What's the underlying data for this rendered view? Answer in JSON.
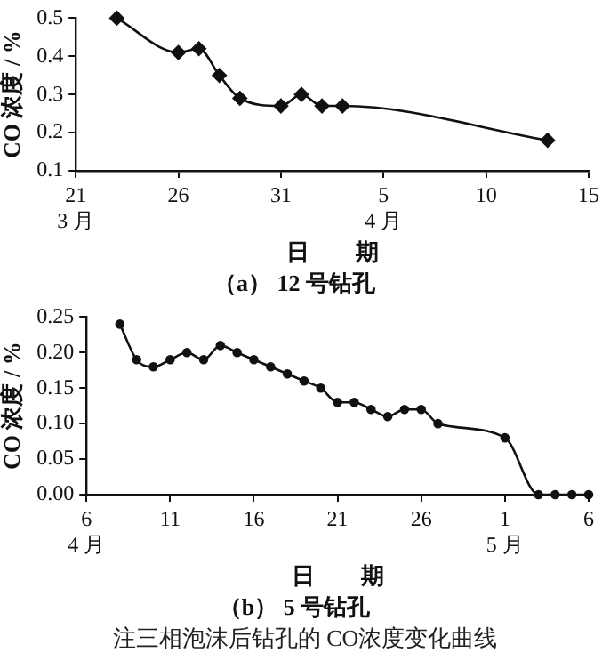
{
  "chart_data": [
    {
      "type": "line",
      "title": "（a） 12 号钻孔",
      "xlabel": "日　　期",
      "ylabel": "CO 浓度 / %",
      "x": [
        "--03-23",
        "--03-26",
        "--03-27",
        "--03-28",
        "--03-29",
        "--03-31",
        "--04-01",
        "--04-02",
        "--04-03",
        "--04-13"
      ],
      "series": [
        {
          "color": "#111111",
          "values": [
            0.5,
            0.41,
            0.42,
            0.35,
            0.29,
            0.27,
            0.3,
            0.27,
            0.27,
            0.18
          ]
        }
      ],
      "xlim": [
        "--03-21",
        "--04-15"
      ],
      "xticks": [
        {
          "value": "--03-21",
          "label": "21\n3 月"
        },
        {
          "value": "--03-26",
          "label": "26"
        },
        {
          "value": "--03-31",
          "label": "31"
        },
        {
          "value": "--04-05",
          "label": "5\n4 月"
        },
        {
          "value": "--04-10",
          "label": "10"
        },
        {
          "value": "--04-15",
          "label": "15"
        }
      ],
      "ylim": [
        0.1,
        0.5
      ],
      "yticks": [
        {
          "value": 0.1,
          "label": "0.1"
        },
        {
          "value": 0.2,
          "label": "0.2"
        },
        {
          "value": 0.3,
          "label": "0.3"
        },
        {
          "value": 0.4,
          "label": "0.4"
        },
        {
          "value": 0.5,
          "label": "0.5"
        }
      ],
      "grid": false,
      "legend": false,
      "marker": "diamond",
      "line_style": "solid"
    },
    {
      "type": "line",
      "title": "（b） 5 号钻孔",
      "xlabel": "日　　期",
      "ylabel": "CO 浓度 / %",
      "annotations": [
        "注三相泡沫后钻孔的 CO浓度变化曲线"
      ],
      "x": [
        "--04-08",
        "--04-09",
        "--04-10",
        "--04-11",
        "--04-12",
        "--04-13",
        "--04-14",
        "--04-15",
        "--04-16",
        "--04-17",
        "--04-18",
        "--04-19",
        "--04-20",
        "--04-21",
        "--04-22",
        "--04-23",
        "--04-24",
        "--04-25",
        "--04-26",
        "--04-27",
        "--05-01",
        "--05-03",
        "--05-04",
        "--05-05",
        "--05-06"
      ],
      "series": [
        {
          "color": "#111111",
          "values": [
            0.24,
            0.19,
            0.18,
            0.19,
            0.2,
            0.19,
            0.21,
            0.2,
            0.19,
            0.18,
            0.17,
            0.16,
            0.15,
            0.13,
            0.13,
            0.12,
            0.11,
            0.12,
            0.12,
            0.1,
            0.08,
            0,
            0,
            0,
            0
          ]
        }
      ],
      "xlim": [
        "--04-06",
        "--05-06"
      ],
      "xticks": [
        {
          "value": "--04-06",
          "label": "6\n4 月"
        },
        {
          "value": "--04-11",
          "label": "11"
        },
        {
          "value": "--04-16",
          "label": "16"
        },
        {
          "value": "--04-21",
          "label": "21"
        },
        {
          "value": "--04-26",
          "label": "26"
        },
        {
          "value": "--05-01",
          "label": "1\n5 月"
        },
        {
          "value": "--05-06",
          "label": "6"
        }
      ],
      "ylim": [
        0,
        0.25
      ],
      "yticks": [
        {
          "value": 0,
          "label": "0.00"
        },
        {
          "value": 0.05,
          "label": "0.05"
        },
        {
          "value": 0.1,
          "label": "0.10"
        },
        {
          "value": 0.15,
          "label": "0.15"
        },
        {
          "value": 0.2,
          "label": "0.20"
        },
        {
          "value": 0.25,
          "label": "0.25"
        }
      ],
      "grid": false,
      "legend": false,
      "marker": "circle",
      "line_style": "solid"
    }
  ]
}
